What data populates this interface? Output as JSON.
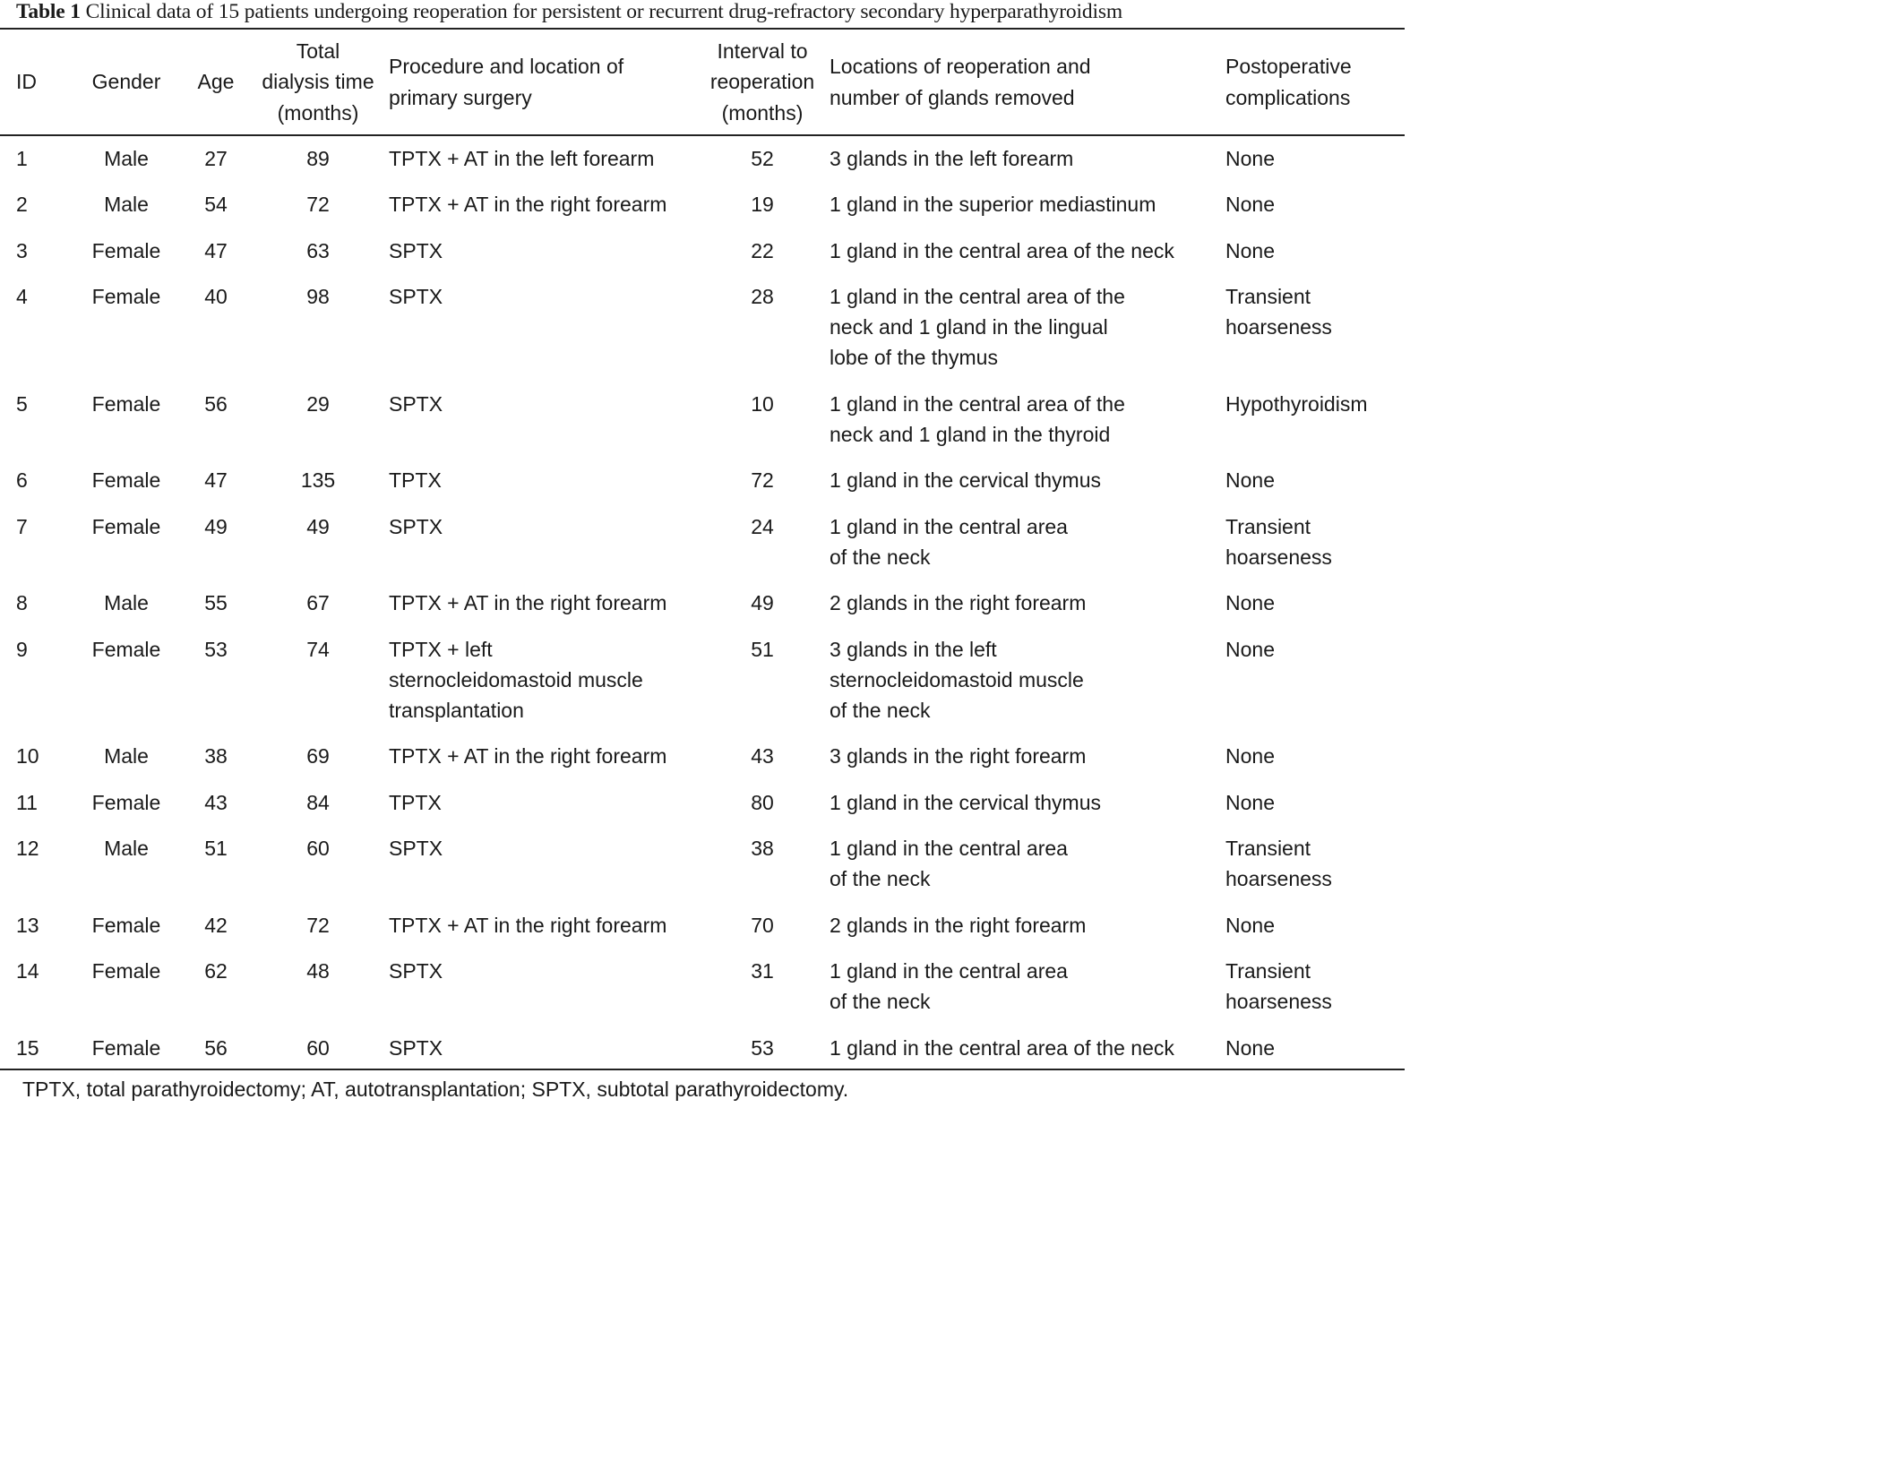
{
  "caption": {
    "label": "Table 1",
    "text": "Clinical data of 15 patients undergoing reoperation for persistent or recurrent drug-refractory secondary hyperparathyroidism"
  },
  "table": {
    "headers": [
      "ID",
      "Gender",
      "Age",
      "Total\ndialysis time\n(months)",
      "Procedure and location of\nprimary surgery",
      "Interval to\nreoperation\n(months)",
      "Locations of reoperation and\nnumber of glands removed",
      "Postoperative\ncomplications"
    ],
    "rows": [
      [
        "1",
        "Male",
        "27",
        "89",
        "TPTX + AT in the left forearm",
        "52",
        "3 glands in the left forearm",
        "None"
      ],
      [
        "2",
        "Male",
        "54",
        "72",
        "TPTX + AT in the right forearm",
        "19",
        "1 gland in the superior mediastinum",
        "None"
      ],
      [
        "3",
        "Female",
        "47",
        "63",
        "SPTX",
        "22",
        "1 gland in the central area of the neck",
        "None"
      ],
      [
        "4",
        "Female",
        "40",
        "98",
        "SPTX",
        "28",
        "1 gland in the central area of the\nneck and 1 gland in the lingual\nlobe of the thymus",
        "Transient\nhoarseness"
      ],
      [
        "5",
        "Female",
        "56",
        "29",
        "SPTX",
        "10",
        "1 gland in the central area of the\nneck and 1 gland in the thyroid",
        "Hypothyroidism"
      ],
      [
        "6",
        "Female",
        "47",
        "135",
        "TPTX",
        "72",
        "1 gland in the cervical thymus",
        "None"
      ],
      [
        "7",
        "Female",
        "49",
        "49",
        "SPTX",
        "24",
        "1 gland in the central area\nof the neck",
        "Transient\nhoarseness"
      ],
      [
        "8",
        "Male",
        "55",
        "67",
        "TPTX + AT in the right forearm",
        "49",
        "2 glands in the right forearm",
        "None"
      ],
      [
        "9",
        "Female",
        "53",
        "74",
        "TPTX + left\nsternocleidomastoid muscle\ntransplantation",
        "51",
        "3 glands in the left\nsternocleidomastoid muscle\nof the neck",
        "None"
      ],
      [
        "10",
        "Male",
        "38",
        "69",
        "TPTX + AT in the right forearm",
        "43",
        "3 glands in the right forearm",
        "None"
      ],
      [
        "11",
        "Female",
        "43",
        "84",
        "TPTX",
        "80",
        "1 gland in the cervical thymus",
        "None"
      ],
      [
        "12",
        "Male",
        "51",
        "60",
        "SPTX",
        "38",
        "1 gland in the central area\nof the neck",
        "Transient\nhoarseness"
      ],
      [
        "13",
        "Female",
        "42",
        "72",
        "TPTX + AT in the right forearm",
        "70",
        "2 glands in the right forearm",
        "None"
      ],
      [
        "14",
        "Female",
        "62",
        "48",
        "SPTX",
        "31",
        "1 gland in the central area\nof the neck",
        "Transient\nhoarseness"
      ],
      [
        "15",
        "Female",
        "56",
        "60",
        "SPTX",
        "53",
        "1 gland in the central area of the neck",
        "None"
      ]
    ]
  },
  "footnote": "TPTX, total parathyroidectomy; AT, autotransplantation; SPTX, subtotal parathyroidectomy."
}
